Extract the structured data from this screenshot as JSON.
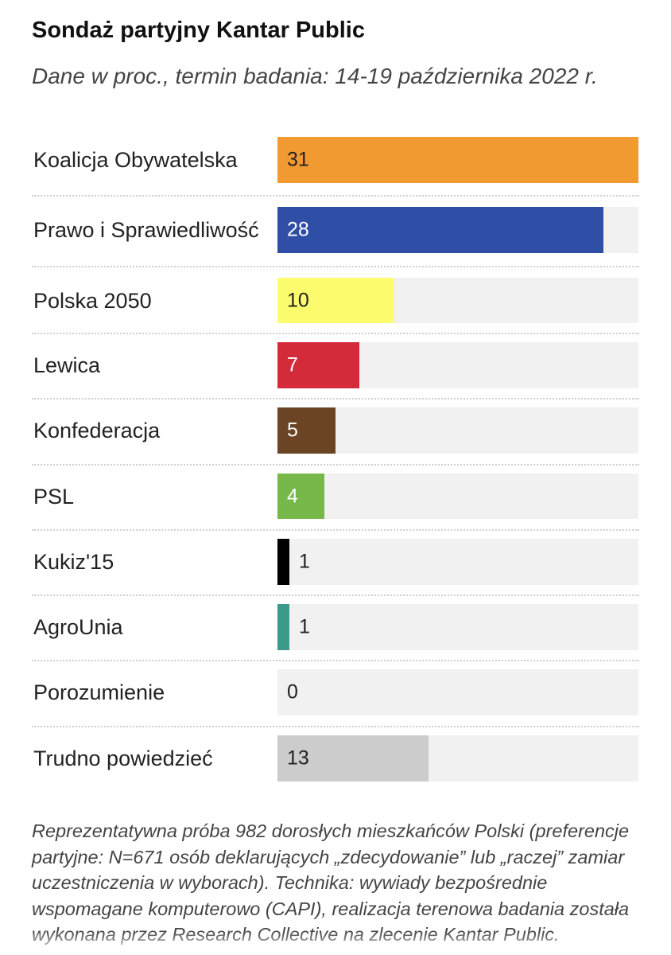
{
  "header": {
    "title": "Sondaż partyjny Kantar Public",
    "subtitle": "Dane w proc., termin badania: 14-19 października 2022 r."
  },
  "chart_data": {
    "type": "bar",
    "orientation": "horizontal",
    "title": "Sondaż partyjny Kantar Public",
    "subtitle": "Dane w proc., termin badania: 14-19 października 2022 r.",
    "xlim": [
      0,
      31
    ],
    "categories": [
      "Koalicja Obywatelska",
      "Prawo i Sprawiedliwość",
      "Polska 2050",
      "Lewica",
      "Konfederacja",
      "PSL",
      "Kukiz'15",
      "AgroUnia",
      "Porozumienie",
      "Trudno powiedzieć"
    ],
    "values": [
      31,
      28,
      10,
      7,
      5,
      4,
      1,
      1,
      0,
      13
    ],
    "colors": [
      "#f29a32",
      "#2f4ea5",
      "#fdfc6e",
      "#d42b3b",
      "#6b4423",
      "#77b84a",
      "#000000",
      "#3c9a8a",
      "#cccccc",
      "#cccccc"
    ],
    "value_label_colors": [
      "#222222",
      "#ffffff",
      "#222222",
      "#ffffff",
      "#ffffff",
      "#ffffff",
      "#222222",
      "#222222",
      "#222222",
      "#222222"
    ],
    "track_color": "#f1f1f1",
    "grid": false
  },
  "footnote": "Reprezentatywna próba 982 dorosłych mieszkańców Polski (preferencje partyjne: N=671 osób deklarujących „zdecydowanie” lub „raczej” zamiar uczestniczenia w wyborach). Technika: wywiady bezpośrednie wspomagane komputerowo (CAPI), realizacja terenowa badania została wykonana przez Research Collective na zlecenie Kantar Public."
}
